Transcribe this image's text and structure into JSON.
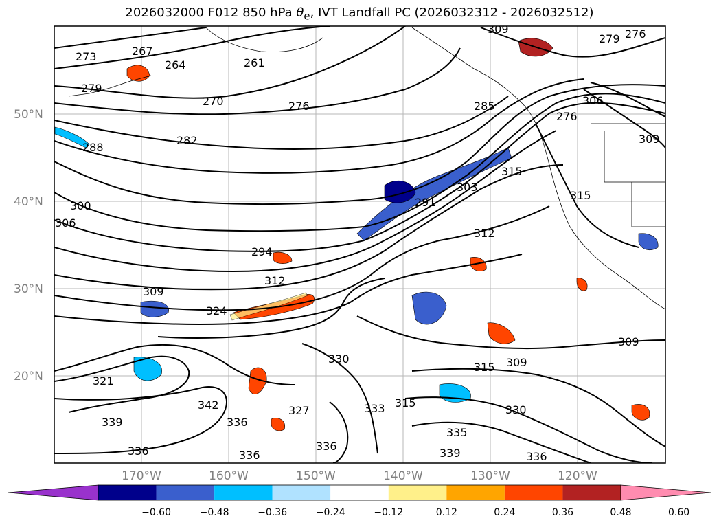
{
  "title": {
    "prefix": "2026032000 F012 850 hPa ",
    "theta": "θ",
    "theta_sub": "e",
    "suffix": ", IVT Landfall PC (2026032312 - 2026032512)"
  },
  "map": {
    "lat_labels": [
      "50°N",
      "40°N",
      "30°N",
      "20°N"
    ],
    "lon_labels": [
      "170°W",
      "160°W",
      "150°W",
      "140°W",
      "130°W",
      "120°W"
    ],
    "contour_labels": [
      "273",
      "267",
      "264",
      "261",
      "279",
      "276",
      "270",
      "276",
      "282",
      "288",
      "300",
      "306",
      "294",
      "291",
      "303",
      "309",
      "312",
      "315",
      "312",
      "309",
      "324",
      "330",
      "321",
      "336",
      "339",
      "342",
      "336",
      "327",
      "336",
      "336",
      "333",
      "315",
      "309",
      "330",
      "336",
      "339",
      "315",
      "306",
      "309",
      "285",
      "279",
      "276",
      "335",
      "315",
      "309"
    ]
  },
  "colorbar": {
    "ticks": [
      "−0.60",
      "−0.48",
      "−0.36",
      "−0.24",
      "−0.12",
      "0.12",
      "0.24",
      "0.36",
      "0.48",
      "0.60"
    ],
    "colors": [
      "#9932cc",
      "#00008b",
      "#3a5fcd",
      "#00bfff",
      "#b0e2ff",
      "#ffffff",
      "#fff08a",
      "#ffa500",
      "#ff4500",
      "#b22222",
      "#ff8cb0"
    ]
  }
}
